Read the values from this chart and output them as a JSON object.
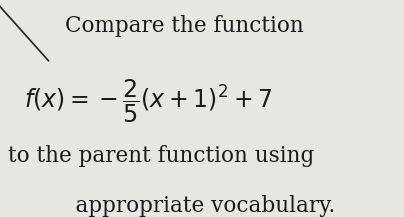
{
  "background_color": "#e8e6e0",
  "line_color": "#222222",
  "text_color": "#1a1a1a",
  "line1": "Compare the function",
  "line3": "to the parent function using",
  "line4": "    appropriate vocabulary.",
  "formula_text": "$f(x) = -\\dfrac{2}{5}(x + 1)^2 + 7$",
  "line1_fontsize": 15.5,
  "formula_fontsize": 17,
  "line3_fontsize": 15.5,
  "line4_fontsize": 15.5,
  "fig_width": 4.04,
  "fig_height": 2.17,
  "dpi": 100
}
